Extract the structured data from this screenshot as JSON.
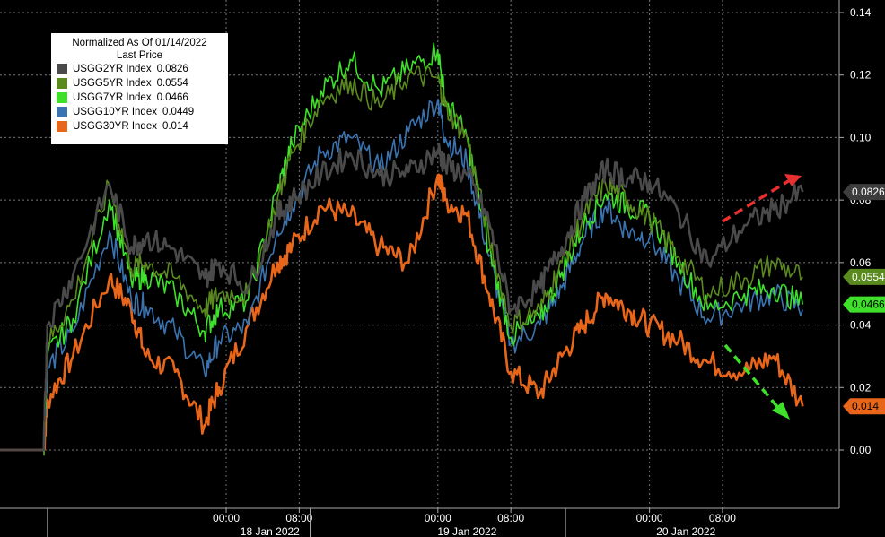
{
  "chart_data": {
    "type": "line",
    "legend": {
      "title": "Normalized As Of 01/14/2022",
      "subtitle": "Last Price",
      "placement": "top-left"
    },
    "ylim": [
      -0.01,
      0.14
    ],
    "y_ticks": [
      0.0,
      0.02,
      0.04,
      0.06,
      0.08,
      0.1,
      0.12,
      0.14
    ],
    "y_tick_labels": [
      "0.00",
      "0.02",
      "0.04",
      "0.06",
      "0.08",
      "0.10",
      "0.12",
      "0.14"
    ],
    "x_axis": {
      "time_ticks": [
        {
          "t": 3.1,
          "label": "00:00"
        },
        {
          "t": 4.1,
          "label": "08:00"
        },
        {
          "t": 6.0,
          "label": "00:00"
        },
        {
          "t": 7.0,
          "label": "08:00"
        },
        {
          "t": 8.9,
          "label": "00:00"
        },
        {
          "t": 9.9,
          "label": "08:00"
        }
      ],
      "day_labels": [
        {
          "t": 3.7,
          "label": "18 Jan 2022"
        },
        {
          "t": 6.4,
          "label": "19 Jan 2022"
        },
        {
          "t": 9.4,
          "label": "20 Jan 2022"
        }
      ]
    },
    "grid": true,
    "series": [
      {
        "name": "USGG2YR Index",
        "last_price": "0.0826",
        "color": "#4a4a4a",
        "x": [
          0,
          0.6,
          0.65,
          1.0,
          1.5,
          1.8,
          2.0,
          2.4,
          2.8,
          3.0,
          3.4,
          3.8,
          4.0,
          4.4,
          4.8,
          5.2,
          5.6,
          6.0,
          6.1,
          6.4,
          6.7,
          7.0,
          7.4,
          7.7,
          8.0,
          8.3,
          8.6,
          8.9,
          9.3,
          9.7,
          10.2,
          10.6,
          11.0
        ],
        "values": [
          0,
          0,
          0.04,
          0.056,
          0.085,
          0.065,
          0.068,
          0.064,
          0.055,
          0.06,
          0.052,
          0.075,
          0.08,
          0.088,
          0.095,
          0.088,
          0.089,
          0.096,
          0.091,
          0.088,
          0.073,
          0.045,
          0.052,
          0.065,
          0.08,
          0.09,
          0.087,
          0.086,
          0.076,
          0.06,
          0.072,
          0.077,
          0.0826
        ]
      },
      {
        "name": "USGG5YR Index",
        "last_price": "0.0554",
        "color": "#5a8a1e",
        "x": [
          0,
          0.6,
          0.65,
          1.0,
          1.5,
          1.8,
          2.0,
          2.4,
          2.8,
          3.0,
          3.4,
          3.8,
          4.0,
          4.4,
          4.8,
          5.2,
          5.6,
          6.0,
          6.1,
          6.4,
          6.7,
          7.0,
          7.4,
          7.7,
          8.0,
          8.3,
          8.6,
          8.9,
          9.3,
          9.7,
          10.2,
          10.6,
          11.0
        ],
        "values": [
          0,
          0,
          0.034,
          0.048,
          0.085,
          0.058,
          0.06,
          0.055,
          0.045,
          0.05,
          0.05,
          0.08,
          0.095,
          0.112,
          0.118,
          0.11,
          0.12,
          0.119,
          0.11,
          0.1,
          0.068,
          0.04,
          0.045,
          0.06,
          0.075,
          0.085,
          0.08,
          0.074,
          0.062,
          0.05,
          0.055,
          0.06,
          0.0554
        ]
      },
      {
        "name": "USGG7YR Index",
        "last_price": "0.0466",
        "color": "#3ee02a",
        "x": [
          0,
          0.6,
          0.65,
          1.0,
          1.5,
          1.8,
          2.0,
          2.4,
          2.8,
          3.0,
          3.4,
          3.8,
          4.0,
          4.4,
          4.8,
          5.2,
          5.6,
          6.0,
          6.1,
          6.4,
          6.7,
          7.0,
          7.4,
          7.7,
          8.0,
          8.3,
          8.6,
          8.9,
          9.3,
          9.7,
          10.2,
          10.6,
          11.0
        ],
        "values": [
          0,
          0,
          0.03,
          0.042,
          0.08,
          0.054,
          0.056,
          0.05,
          0.038,
          0.045,
          0.048,
          0.083,
          0.098,
          0.115,
          0.125,
          0.115,
          0.122,
          0.128,
          0.112,
          0.1,
          0.064,
          0.036,
          0.042,
          0.057,
          0.072,
          0.082,
          0.078,
          0.075,
          0.06,
          0.045,
          0.05,
          0.052,
          0.0466
        ]
      },
      {
        "name": "USGG10YR Index",
        "last_price": "0.0449",
        "color": "#3a73b0",
        "x": [
          0,
          0.6,
          0.65,
          1.0,
          1.5,
          1.8,
          2.0,
          2.4,
          2.8,
          3.0,
          3.4,
          3.8,
          4.0,
          4.4,
          4.8,
          5.2,
          5.6,
          6.0,
          6.1,
          6.4,
          6.7,
          7.0,
          7.4,
          7.7,
          8.0,
          8.3,
          8.6,
          8.9,
          9.3,
          9.7,
          10.2,
          10.6,
          11.0
        ],
        "values": [
          0,
          0,
          0.026,
          0.038,
          0.07,
          0.048,
          0.046,
          0.038,
          0.025,
          0.035,
          0.04,
          0.07,
          0.078,
          0.095,
          0.1,
          0.09,
          0.102,
          0.112,
          0.1,
          0.092,
          0.062,
          0.034,
          0.04,
          0.052,
          0.068,
          0.078,
          0.07,
          0.068,
          0.054,
          0.042,
          0.047,
          0.05,
          0.0449
        ]
      },
      {
        "name": "USGG30YR Index",
        "last_price": "0.014",
        "color": "#e8661a",
        "x": [
          0,
          0.6,
          0.65,
          1.0,
          1.5,
          1.8,
          2.0,
          2.4,
          2.8,
          3.0,
          3.4,
          3.8,
          4.0,
          4.4,
          4.8,
          5.2,
          5.6,
          6.0,
          6.1,
          6.4,
          6.7,
          7.0,
          7.4,
          7.7,
          8.0,
          8.3,
          8.6,
          8.9,
          9.3,
          9.7,
          10.2,
          10.6,
          11.0
        ],
        "values": [
          0,
          0,
          0.016,
          0.03,
          0.055,
          0.045,
          0.03,
          0.025,
          0.008,
          0.02,
          0.04,
          0.06,
          0.065,
          0.078,
          0.075,
          0.065,
          0.06,
          0.088,
          0.08,
          0.075,
          0.05,
          0.025,
          0.018,
          0.03,
          0.04,
          0.05,
          0.045,
          0.04,
          0.035,
          0.028,
          0.025,
          0.03,
          0.014
        ]
      }
    ]
  }
}
